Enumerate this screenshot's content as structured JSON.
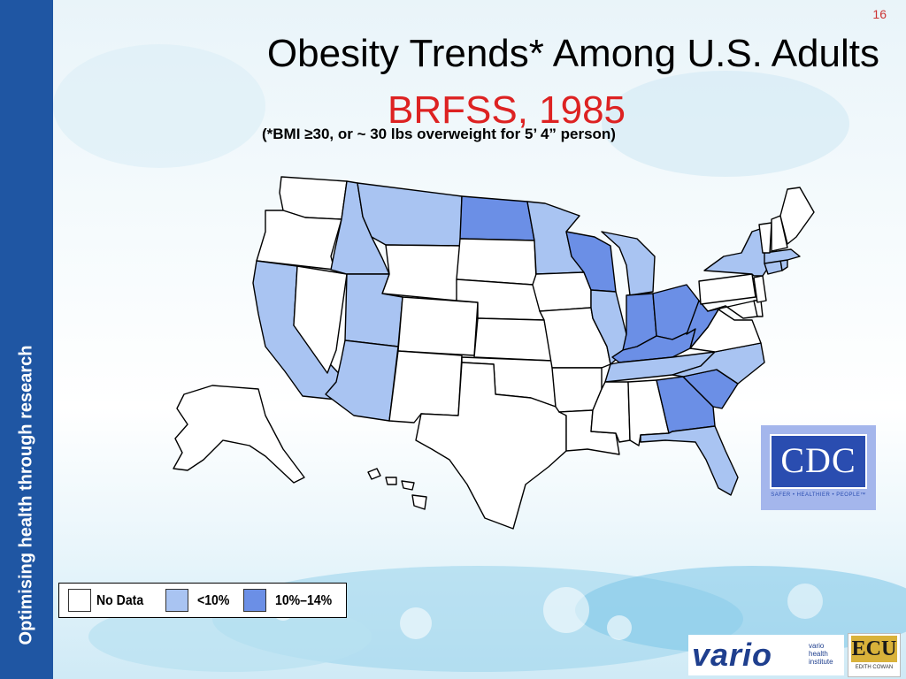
{
  "slide": {
    "number": "16",
    "title": "Obesity Trends* Among U.S. Adults",
    "subtitle": "BRFSS, 1985",
    "note": "(*BMI ≥30, or ~ 30 lbs overweight for 5’ 4” person)",
    "sidebar_text": "Optimising health through research"
  },
  "legend": {
    "items": [
      {
        "label": "No Data",
        "color": "#ffffff"
      },
      {
        "label": "<10%",
        "color": "#a9c4f2"
      },
      {
        "label": "10%–14%",
        "color": "#6b8fe6"
      }
    ]
  },
  "map": {
    "categories": {
      "no_data": [
        "WA",
        "OR",
        "NV",
        "WY",
        "SD",
        "NE",
        "KS",
        "OK",
        "TX",
        "NM",
        "CO",
        "IA",
        "MO",
        "AR",
        "LA",
        "MS",
        "AL",
        "VA",
        "PA",
        "NJ",
        "DE",
        "MD",
        "VT",
        "NH",
        "ME",
        "AK",
        "HI"
      ],
      "lt_10": [
        "CA",
        "ID",
        "MT",
        "UT",
        "AZ",
        "MN",
        "IL",
        "MI",
        "NY",
        "TN",
        "NC",
        "FL",
        "CT",
        "MA",
        "RI"
      ],
      "ten_to_14": [
        "ND",
        "WI",
        "IN",
        "OH",
        "KY",
        "WV",
        "GA",
        "SC"
      ]
    }
  },
  "logos": {
    "cdc": "CDC",
    "cdc_tagline": "SAFER • HEALTHIER • PEOPLE™",
    "vario": "vario",
    "vario_sub": "vario health institute",
    "ecu": "ECU",
    "ecu_sub": "EDITH COWAN"
  },
  "colors": {
    "sidebar": "#1f56a3",
    "title_accent": "#dd2222",
    "lt_10": "#a9c4f2",
    "ten_to_14": "#6b8fe6"
  }
}
